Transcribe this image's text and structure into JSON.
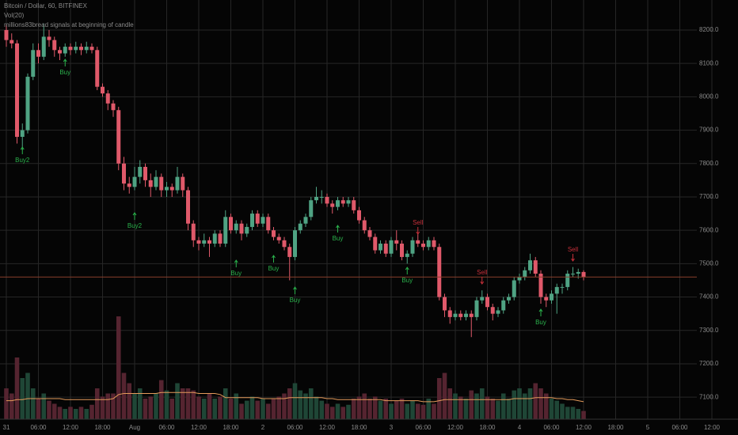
{
  "chart_data": {
    "type": "candlestick",
    "title": "Bitcoin / Dollar, 60, BITFINEX",
    "indicators": [
      "Vol(20)",
      "millions83bread signals at beginning of candle"
    ],
    "up_color": "#4fa383",
    "down_color": "#e0596a",
    "volume_up_color": "#1f4636",
    "volume_down_color": "#552430",
    "ma_color": "#e39a5a",
    "grid": true,
    "ylim": [
      7034,
      8290
    ],
    "yticks": [
      {
        "value": 7100,
        "label": "7100.0"
      },
      {
        "value": 7200,
        "label": "7200.0"
      },
      {
        "value": 7300,
        "label": "7300.0"
      },
      {
        "value": 7400,
        "label": "7400.0"
      },
      {
        "value": 7500,
        "label": "7500.0"
      },
      {
        "value": 7600,
        "label": "7600.0"
      },
      {
        "value": 7700,
        "label": "7700.0"
      },
      {
        "value": 7800,
        "label": "7800.0"
      },
      {
        "value": 7900,
        "label": "7900.0"
      },
      {
        "value": 8000,
        "label": "8000.0"
      },
      {
        "value": 8100,
        "label": "8100.0"
      },
      {
        "value": 8200,
        "label": "8200.0"
      }
    ],
    "y2lim": [
      0,
      100
    ],
    "xticks": [
      "31",
      "06:00",
      "12:00",
      "18:00",
      "Aug",
      "06:00",
      "12:00",
      "18:00",
      "2",
      "06:00",
      "12:00",
      "18:00",
      "3",
      "06:00",
      "12:00",
      "18:00",
      "4",
      "06:00",
      "12:00",
      "18:00",
      "5",
      "06:00",
      "12:00"
    ],
    "ohlc": [
      [
        8200,
        8215,
        8150,
        8170
      ],
      [
        8170,
        8190,
        8145,
        8160
      ],
      [
        8160,
        8170,
        7860,
        7880
      ],
      [
        7880,
        7920,
        7840,
        7900
      ],
      [
        7900,
        8070,
        7890,
        8060
      ],
      [
        8060,
        8160,
        8050,
        8140
      ],
      [
        8140,
        8160,
        8100,
        8120
      ],
      [
        8120,
        8220,
        8110,
        8180
      ],
      [
        8180,
        8200,
        8150,
        8170
      ],
      [
        8170,
        8180,
        8120,
        8140
      ],
      [
        8140,
        8150,
        8110,
        8130
      ],
      [
        8130,
        8160,
        8120,
        8150
      ],
      [
        8150,
        8160,
        8125,
        8140
      ],
      [
        8140,
        8165,
        8130,
        8150
      ],
      [
        8150,
        8160,
        8125,
        8140
      ],
      [
        8140,
        8165,
        8130,
        8150
      ],
      [
        8150,
        8160,
        8130,
        8140
      ],
      [
        8140,
        8150,
        8020,
        8030
      ],
      [
        8030,
        8040,
        8000,
        8010
      ],
      [
        8010,
        8020,
        7960,
        7980
      ],
      [
        7980,
        7990,
        7940,
        7960
      ],
      [
        7960,
        7970,
        7780,
        7800
      ],
      [
        7800,
        7820,
        7720,
        7740
      ],
      [
        7740,
        7760,
        7710,
        7730
      ],
      [
        7730,
        7790,
        7720,
        7760
      ],
      [
        7760,
        7810,
        7740,
        7790
      ],
      [
        7790,
        7800,
        7730,
        7750
      ],
      [
        7750,
        7770,
        7700,
        7730
      ],
      [
        7730,
        7780,
        7720,
        7760
      ],
      [
        7760,
        7770,
        7700,
        7720
      ],
      [
        7720,
        7745,
        7700,
        7730
      ],
      [
        7730,
        7740,
        7700,
        7720
      ],
      [
        7720,
        7790,
        7710,
        7760
      ],
      [
        7760,
        7770,
        7700,
        7720
      ],
      [
        7720,
        7730,
        7600,
        7620
      ],
      [
        7620,
        7630,
        7550,
        7570
      ],
      [
        7570,
        7580,
        7540,
        7560
      ],
      [
        7560,
        7590,
        7550,
        7570
      ],
      [
        7570,
        7580,
        7520,
        7560
      ],
      [
        7560,
        7600,
        7550,
        7590
      ],
      [
        7590,
        7600,
        7550,
        7560
      ],
      [
        7560,
        7660,
        7550,
        7640
      ],
      [
        7640,
        7650,
        7590,
        7600
      ],
      [
        7600,
        7630,
        7590,
        7620
      ],
      [
        7620,
        7630,
        7570,
        7590
      ],
      [
        7590,
        7620,
        7580,
        7610
      ],
      [
        7610,
        7660,
        7600,
        7650
      ],
      [
        7650,
        7660,
        7610,
        7620
      ],
      [
        7620,
        7650,
        7610,
        7640
      ],
      [
        7640,
        7650,
        7590,
        7600
      ],
      [
        7600,
        7610,
        7570,
        7580
      ],
      [
        7580,
        7590,
        7560,
        7570
      ],
      [
        7570,
        7580,
        7540,
        7550
      ],
      [
        7550,
        7560,
        7450,
        7520
      ],
      [
        7520,
        7610,
        7510,
        7600
      ],
      [
        7600,
        7630,
        7590,
        7620
      ],
      [
        7620,
        7650,
        7610,
        7640
      ],
      [
        7640,
        7700,
        7630,
        7690
      ],
      [
        7690,
        7730,
        7680,
        7700
      ],
      [
        7700,
        7720,
        7680,
        7700
      ],
      [
        7700,
        7710,
        7670,
        7680
      ],
      [
        7680,
        7690,
        7650,
        7670
      ],
      [
        7670,
        7700,
        7660,
        7690
      ],
      [
        7690,
        7700,
        7670,
        7680
      ],
      [
        7680,
        7700,
        7670,
        7690
      ],
      [
        7690,
        7700,
        7650,
        7660
      ],
      [
        7660,
        7670,
        7620,
        7630
      ],
      [
        7630,
        7640,
        7590,
        7600
      ],
      [
        7600,
        7610,
        7570,
        7580
      ],
      [
        7580,
        7590,
        7530,
        7540
      ],
      [
        7540,
        7570,
        7530,
        7560
      ],
      [
        7560,
        7570,
        7520,
        7530
      ],
      [
        7530,
        7580,
        7520,
        7570
      ],
      [
        7570,
        7600,
        7540,
        7560
      ],
      [
        7560,
        7570,
        7510,
        7520
      ],
      [
        7520,
        7540,
        7500,
        7530
      ],
      [
        7530,
        7580,
        7520,
        7570
      ],
      [
        7570,
        7590,
        7550,
        7560
      ],
      [
        7560,
        7570,
        7540,
        7550
      ],
      [
        7550,
        7580,
        7540,
        7570
      ],
      [
        7570,
        7580,
        7540,
        7550
      ],
      [
        7550,
        7560,
        7390,
        7400
      ],
      [
        7400,
        7410,
        7340,
        7360
      ],
      [
        7360,
        7370,
        7320,
        7340
      ],
      [
        7340,
        7360,
        7330,
        7350
      ],
      [
        7350,
        7360,
        7330,
        7340
      ],
      [
        7340,
        7360,
        7330,
        7350
      ],
      [
        7350,
        7360,
        7280,
        7340
      ],
      [
        7340,
        7400,
        7330,
        7390
      ],
      [
        7390,
        7420,
        7380,
        7400
      ],
      [
        7400,
        7410,
        7360,
        7370
      ],
      [
        7370,
        7380,
        7330,
        7350
      ],
      [
        7350,
        7370,
        7340,
        7360
      ],
      [
        7360,
        7400,
        7350,
        7390
      ],
      [
        7390,
        7410,
        7380,
        7400
      ],
      [
        7400,
        7460,
        7390,
        7450
      ],
      [
        7450,
        7470,
        7440,
        7460
      ],
      [
        7460,
        7490,
        7450,
        7480
      ],
      [
        7480,
        7530,
        7470,
        7510
      ],
      [
        7510,
        7520,
        7460,
        7470
      ],
      [
        7470,
        7480,
        7380,
        7400
      ],
      [
        7400,
        7410,
        7370,
        7390
      ],
      [
        7390,
        7420,
        7380,
        7410
      ],
      [
        7410,
        7440,
        7350,
        7430
      ],
      [
        7430,
        7440,
        7410,
        7430
      ],
      [
        7430,
        7480,
        7420,
        7470
      ],
      [
        7470,
        7490,
        7460,
        7470
      ],
      [
        7470,
        7485,
        7455,
        7475
      ],
      [
        7475,
        7480,
        7450,
        7460
      ]
    ],
    "volumes": [
      30,
      25,
      60,
      40,
      45,
      30,
      20,
      25,
      18,
      15,
      12,
      10,
      12,
      10,
      12,
      10,
      14,
      30,
      22,
      25,
      25,
      100,
      45,
      35,
      25,
      30,
      20,
      22,
      25,
      38,
      28,
      20,
      35,
      30,
      30,
      28,
      22,
      20,
      25,
      20,
      22,
      30,
      20,
      25,
      15,
      18,
      22,
      18,
      20,
      15,
      20,
      22,
      25,
      30,
      35,
      28,
      25,
      30,
      22,
      18,
      15,
      12,
      15,
      12,
      14,
      20,
      22,
      25,
      20,
      22,
      18,
      20,
      15,
      18,
      20,
      15,
      18,
      15,
      14,
      20,
      15,
      40,
      45,
      30,
      25,
      22,
      20,
      28,
      25,
      30,
      22,
      20,
      18,
      25,
      20,
      28,
      30,
      25,
      30,
      35,
      30,
      25,
      20,
      18,
      15,
      12,
      12,
      10,
      8
    ],
    "volume_ma": [
      18,
      18,
      19,
      19,
      20,
      20,
      20,
      20,
      20,
      20,
      20,
      19,
      19,
      19,
      19,
      19,
      19,
      19,
      19,
      19,
      20,
      24,
      25,
      25,
      25,
      25,
      25,
      25,
      25,
      26,
      26,
      26,
      26,
      26,
      26,
      26,
      25,
      25,
      25,
      25,
      24,
      21,
      21,
      21,
      21,
      21,
      21,
      21,
      20,
      20,
      20,
      20,
      20,
      21,
      21,
      21,
      21,
      21,
      21,
      21,
      20,
      20,
      19,
      19,
      19,
      19,
      19,
      19,
      19,
      19,
      19,
      18,
      18,
      18,
      18,
      18,
      18,
      18,
      17,
      17,
      17,
      18,
      19,
      19,
      19,
      19,
      19,
      19,
      19,
      19,
      19,
      19,
      19,
      19,
      19,
      20,
      20,
      20,
      20,
      21,
      21,
      21,
      21,
      20,
      20,
      19,
      19,
      18,
      17
    ],
    "annotations": [
      {
        "text": "Buy2",
        "color": "#2bb24c"
      },
      {
        "text": "Buy",
        "color": "#2bb24c"
      },
      {
        "text": "Buy2",
        "color": "#2bb24c"
      },
      {
        "text": "Buy",
        "color": "#2bb24c"
      },
      {
        "text": "Buy",
        "color": "#2bb24c"
      },
      {
        "text": "Buy",
        "color": "#2bb24c"
      },
      {
        "text": "Buy",
        "color": "#2bb24c"
      },
      {
        "text": "Buy",
        "color": "#2bb24c"
      },
      {
        "text": "Sell",
        "color": "#c8303a"
      },
      {
        "text": "Sell",
        "color": "#c8303a"
      },
      {
        "text": "Buy",
        "color": "#2bb24c"
      },
      {
        "text": "Sell",
        "color": "#c8303a"
      }
    ],
    "price_line_color": "#8a3f2c"
  }
}
